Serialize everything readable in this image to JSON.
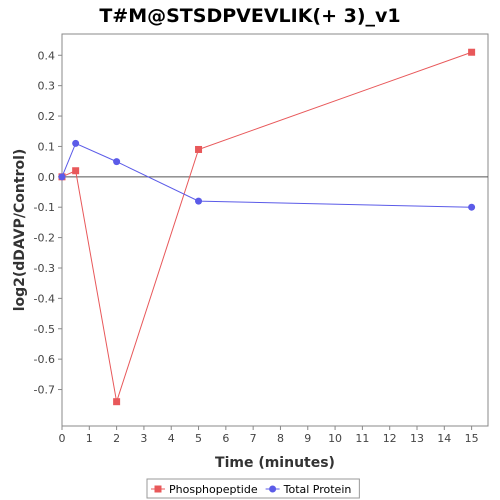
{
  "chart_data": {
    "type": "line",
    "title": "T#M@STSDPVEVLIK(+ 3)_v1",
    "xlabel": "Time (minutes)",
    "ylabel": "log2(dDAVP/Control)",
    "xlim": [
      0,
      15.6
    ],
    "ylim": [
      -0.82,
      0.47
    ],
    "x_ticks": [
      0,
      1,
      2,
      3,
      4,
      5,
      6,
      7,
      8,
      9,
      10,
      11,
      12,
      13,
      14,
      15
    ],
    "y_ticks": [
      0.4,
      0.3,
      0.2,
      0.1,
      0.0,
      -0.1,
      -0.2,
      -0.3,
      -0.4,
      -0.5,
      -0.6,
      -0.7
    ],
    "y_tick_labels": [
      "0.4",
      "0.3",
      "0.2",
      "0.1",
      "0.0",
      "-0.1",
      "-0.2",
      "-0.3",
      "-0.4",
      "-0.5",
      "-0.6",
      "-0.7"
    ],
    "zero_line": true,
    "grid": false,
    "legend_position": "bottom",
    "series": [
      {
        "name": "Phosphopeptide",
        "color": "#e8585a",
        "marker": "square",
        "x": [
          0,
          0.5,
          2,
          5,
          15
        ],
        "y": [
          0.0,
          0.02,
          -0.74,
          0.09,
          0.41
        ]
      },
      {
        "name": "Total Protein",
        "color": "#5b5be8",
        "marker": "circle",
        "x": [
          0,
          0.5,
          2,
          5,
          15
        ],
        "y": [
          0.0,
          0.11,
          0.05,
          -0.08,
          -0.1
        ]
      }
    ]
  }
}
